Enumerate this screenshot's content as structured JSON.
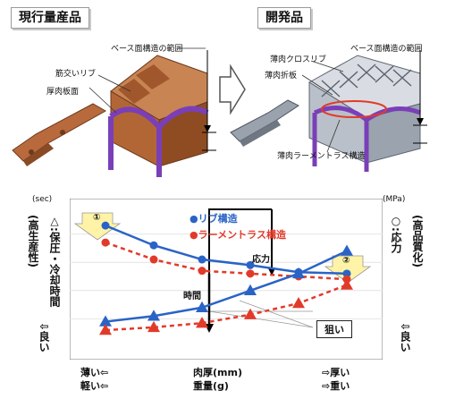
{
  "top": {
    "left_title": "現行量産品",
    "right_title": "開発品",
    "left_labels": {
      "base_range": "ベース面構造の範囲",
      "rib": "筋交いリブ",
      "thick_plate": "厚肉板面"
    },
    "right_labels": {
      "base_range": "ベース面構造の範囲",
      "cross_rib": "薄肉クロスリブ",
      "folded_plate": "薄肉折板",
      "truss": "薄肉ラーメントラス構造"
    }
  },
  "chart": {
    "left_unit": "(sec)",
    "right_unit": "(MPa)",
    "left_axis_top": "(高生産性)",
    "left_axis_main": "△:保圧・冷却時間",
    "left_axis_bottom": "⇩良い",
    "right_axis_top": "(高品質化)",
    "right_axis_main": "○:応力",
    "right_axis_bottom": "⇩良い",
    "marker1": "①",
    "marker2": "②",
    "legend": {
      "blue": "●リブ構造",
      "red": "●ラーメントラス構造"
    },
    "stress_label": "応力",
    "time_label": "時間",
    "target": "狙い",
    "bottom": {
      "left1": "薄い⇦",
      "left2": "軽い⇦",
      "center1": "肉厚(mm)",
      "center2": "重量(g)",
      "right1": "⇨厚い",
      "right2": "⇨重い"
    }
  },
  "chart_data": {
    "type": "line",
    "x": [
      1,
      2,
      3,
      4,
      5,
      6
    ],
    "series": [
      {
        "name": "リブ構造",
        "marker": "circle",
        "values": [
          86,
          72,
          62,
          58,
          53,
          52
        ],
        "color": "#2a63c6"
      },
      {
        "name": "ラーメントラス構造",
        "marker": "circle",
        "values": [
          74,
          62,
          54,
          52,
          50,
          48
        ],
        "color": "#e23a2a"
      },
      {
        "name": "リブ構造 (time)",
        "marker": "triangle",
        "values": [
          18,
          22,
          28,
          40,
          52,
          68
        ],
        "color": "#2a63c6"
      },
      {
        "name": "ラーメントラス構造 (time)",
        "marker": "triangle",
        "values": [
          12,
          14,
          17,
          23,
          31,
          44
        ],
        "color": "#e23a2a"
      }
    ],
    "ylim": [
      0,
      100
    ]
  }
}
